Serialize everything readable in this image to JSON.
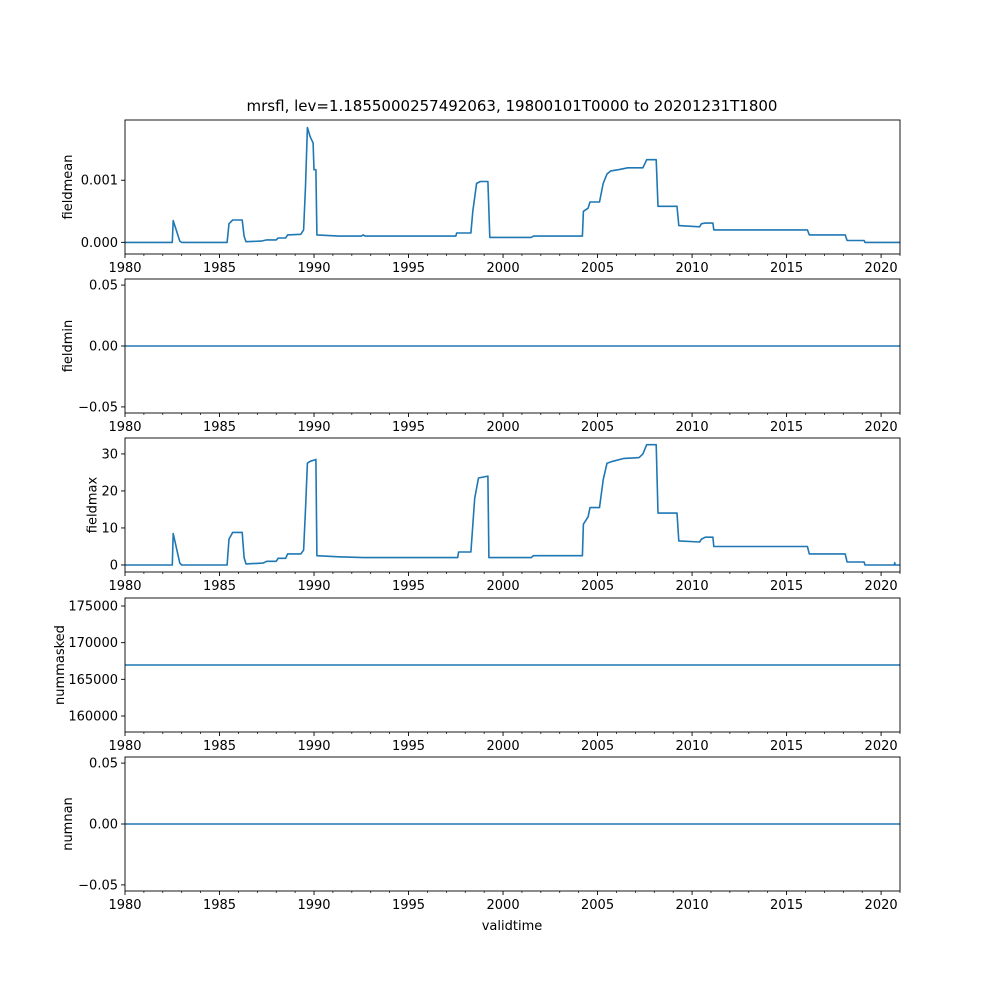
{
  "title": "mrsfl, lev=1.1855000257492063, 19800101T0000 to 20201231T1800",
  "xlabel": "validtime",
  "line_color": "#1f77b4",
  "chart_data": [
    {
      "type": "line",
      "ylabel": "fieldmean",
      "xlim": [
        1980,
        2021
      ],
      "ylim": [
        -0.0001875,
        0.00197
      ],
      "xticks": [
        1980,
        1985,
        1990,
        1995,
        2000,
        2005,
        2010,
        2015,
        2020
      ],
      "yticks": [
        0.0,
        0.001
      ],
      "ytick_labels": [
        "0.000",
        "0.001"
      ],
      "points": [
        [
          1980,
          0
        ],
        [
          1982.5,
          0
        ],
        [
          1982.55,
          0.00035
        ],
        [
          1982.9,
          2e-05
        ],
        [
          1983,
          0
        ],
        [
          1985.4,
          0
        ],
        [
          1985.5,
          0.0003
        ],
        [
          1985.7,
          0.00036
        ],
        [
          1986.2,
          0.00036
        ],
        [
          1986.3,
          0.0001
        ],
        [
          1986.4,
          1e-05
        ],
        [
          1987.2,
          2e-05
        ],
        [
          1987.5,
          4e-05
        ],
        [
          1988,
          4e-05
        ],
        [
          1988.1,
          7e-05
        ],
        [
          1988.5,
          7e-05
        ],
        [
          1988.6,
          0.00012
        ],
        [
          1989.3,
          0.00013
        ],
        [
          1989.45,
          0.0002
        ],
        [
          1989.55,
          0.0009
        ],
        [
          1989.65,
          0.00185
        ],
        [
          1989.8,
          0.0017
        ],
        [
          1989.95,
          0.0016
        ],
        [
          1990.0,
          0.00117
        ],
        [
          1990.1,
          0.00117
        ],
        [
          1990.15,
          0.00012
        ],
        [
          1991.3,
          0.0001
        ],
        [
          1992.5,
          0.0001
        ],
        [
          1992.6,
          0.00012
        ],
        [
          1992.7,
          0.0001
        ],
        [
          1997.5,
          0.0001
        ],
        [
          1997.55,
          0.00015
        ],
        [
          1998.3,
          0.00015
        ],
        [
          1998.4,
          0.0005
        ],
        [
          1998.6,
          0.00095
        ],
        [
          1998.8,
          0.00098
        ],
        [
          1999.2,
          0.00098
        ],
        [
          1999.3,
          8e-05
        ],
        [
          2001.5,
          8e-05
        ],
        [
          2001.6,
          0.0001
        ],
        [
          2004.2,
          0.0001
        ],
        [
          2004.25,
          0.0005
        ],
        [
          2004.5,
          0.00055
        ],
        [
          2004.6,
          0.00065
        ],
        [
          2005.1,
          0.00065
        ],
        [
          2005.3,
          0.00095
        ],
        [
          2005.5,
          0.0011
        ],
        [
          2005.7,
          0.00115
        ],
        [
          2006.1,
          0.00117
        ],
        [
          2006.6,
          0.0012
        ],
        [
          2007.4,
          0.0012
        ],
        [
          2007.6,
          0.00133
        ],
        [
          2008.1,
          0.00133
        ],
        [
          2008.2,
          0.00058
        ],
        [
          2009.2,
          0.00058
        ],
        [
          2009.3,
          0.00027
        ],
        [
          2010.4,
          0.00025
        ],
        [
          2010.5,
          0.0003
        ],
        [
          2010.7,
          0.00031
        ],
        [
          2011.1,
          0.00031
        ],
        [
          2011.15,
          0.0002
        ],
        [
          2016.1,
          0.0002
        ],
        [
          2016.2,
          0.00012
        ],
        [
          2018.1,
          0.00012
        ],
        [
          2018.2,
          3e-05
        ],
        [
          2019.1,
          3e-05
        ],
        [
          2019.15,
          0
        ],
        [
          2021,
          0
        ]
      ]
    },
    {
      "type": "line",
      "ylabel": "fieldmin",
      "xlim": [
        1980,
        2021
      ],
      "ylim": [
        -0.055,
        0.055
      ],
      "xticks": [
        1980,
        1985,
        1990,
        1995,
        2000,
        2005,
        2010,
        2015,
        2020
      ],
      "yticks": [
        -0.05,
        0.0,
        0.05
      ],
      "ytick_labels": [
        "−0.05",
        "0.00",
        "0.05"
      ],
      "points": [
        [
          1980,
          0
        ],
        [
          2021,
          0
        ]
      ]
    },
    {
      "type": "line",
      "ylabel": "fieldmax",
      "xlim": [
        1980,
        2021
      ],
      "ylim": [
        -1.9,
        34.3
      ],
      "xticks": [
        1980,
        1985,
        1990,
        1995,
        2000,
        2005,
        2010,
        2015,
        2020
      ],
      "yticks": [
        0,
        10,
        20,
        30
      ],
      "ytick_labels": [
        "0",
        "10",
        "20",
        "30"
      ],
      "points": [
        [
          1980,
          0
        ],
        [
          1982.5,
          0
        ],
        [
          1982.55,
          8.5
        ],
        [
          1982.9,
          0.5
        ],
        [
          1983,
          0
        ],
        [
          1985.4,
          0
        ],
        [
          1985.5,
          7
        ],
        [
          1985.7,
          8.8
        ],
        [
          1986.2,
          8.8
        ],
        [
          1986.3,
          2
        ],
        [
          1986.4,
          0.3
        ],
        [
          1987.3,
          0.5
        ],
        [
          1987.5,
          1
        ],
        [
          1988,
          1
        ],
        [
          1988.1,
          1.8
        ],
        [
          1988.5,
          1.8
        ],
        [
          1988.6,
          3
        ],
        [
          1989.3,
          3
        ],
        [
          1989.45,
          4
        ],
        [
          1989.55,
          15
        ],
        [
          1989.65,
          27.5
        ],
        [
          1989.8,
          28
        ],
        [
          1990.1,
          28.5
        ],
        [
          1990.15,
          2.5
        ],
        [
          1991.3,
          2.2
        ],
        [
          1992.6,
          2
        ],
        [
          1997.6,
          2
        ],
        [
          1997.65,
          3.5
        ],
        [
          1998.3,
          3.5
        ],
        [
          1998.5,
          18
        ],
        [
          1998.7,
          23.5
        ],
        [
          1999.2,
          24
        ],
        [
          1999.25,
          2
        ],
        [
          2001.5,
          2
        ],
        [
          2001.6,
          2.5
        ],
        [
          2004.2,
          2.5
        ],
        [
          2004.25,
          11
        ],
        [
          2004.5,
          13
        ],
        [
          2004.6,
          15.5
        ],
        [
          2005.1,
          15.5
        ],
        [
          2005.3,
          23
        ],
        [
          2005.5,
          27.5
        ],
        [
          2005.8,
          28
        ],
        [
          2006.4,
          28.8
        ],
        [
          2007.2,
          29
        ],
        [
          2007.4,
          30
        ],
        [
          2007.6,
          32.5
        ],
        [
          2008.1,
          32.5
        ],
        [
          2008.2,
          14
        ],
        [
          2009.2,
          14
        ],
        [
          2009.3,
          6.5
        ],
        [
          2010.4,
          6.2
        ],
        [
          2010.5,
          7
        ],
        [
          2010.7,
          7.5
        ],
        [
          2011.1,
          7.5
        ],
        [
          2011.15,
          5
        ],
        [
          2016.1,
          5
        ],
        [
          2016.2,
          3
        ],
        [
          2018.1,
          3
        ],
        [
          2018.2,
          0.8
        ],
        [
          2019.1,
          0.8
        ],
        [
          2019.15,
          0
        ],
        [
          2020.7,
          0
        ],
        [
          2020.72,
          0.6
        ],
        [
          2020.75,
          0
        ],
        [
          2021,
          0
        ]
      ]
    },
    {
      "type": "line",
      "ylabel": "nummasked",
      "xlim": [
        1980,
        2021
      ],
      "ylim": [
        157820,
        176090
      ],
      "xticks": [
        1980,
        1985,
        1990,
        1995,
        2000,
        2005,
        2010,
        2015,
        2020
      ],
      "yticks": [
        160000,
        165000,
        170000,
        175000
      ],
      "ytick_labels": [
        "160000",
        "165000",
        "170000",
        "175000"
      ],
      "points": [
        [
          1980,
          166956
        ],
        [
          2021,
          166956
        ]
      ]
    },
    {
      "type": "line",
      "ylabel": "numnan",
      "xlim": [
        1980,
        2021
      ],
      "ylim": [
        -0.055,
        0.055
      ],
      "xticks": [
        1980,
        1985,
        1990,
        1995,
        2000,
        2005,
        2010,
        2015,
        2020
      ],
      "yticks": [
        -0.05,
        0.0,
        0.05
      ],
      "ytick_labels": [
        "−0.05",
        "0.00",
        "0.05"
      ],
      "points": [
        [
          1980,
          0
        ],
        [
          2021,
          0
        ]
      ]
    }
  ]
}
